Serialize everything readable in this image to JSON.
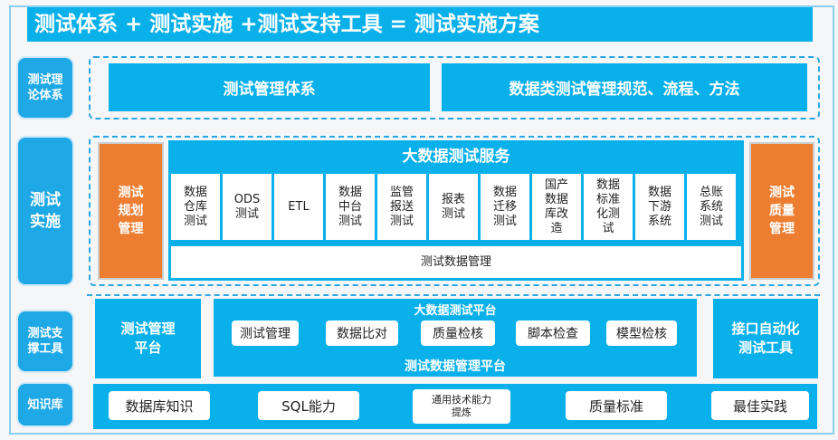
{
  "title": "测试体系 + 测试实施 +测试支持工具 = 测试实施方案",
  "side_labels": [
    "测试理\n论体系",
    "测试\n实施",
    "测试支\n撑工具",
    "知识库"
  ],
  "theory": {
    "items": [
      "测试管理体系",
      "数据类测试管理规范、流程、方法"
    ]
  },
  "implementation": {
    "left": "测试\n规划\n管理",
    "right": "测试\n质量\n管理",
    "service_title": "大数据测试服务",
    "services": [
      "数据\n仓库\n测试",
      "ODS\n测试",
      "ETL",
      "数据\n中台\n测试",
      "监管\n报送\n测试",
      "报表\n测试",
      "数据\n迁移\n测试",
      "国产\n数据\n库改\n造",
      "数据\n标准\n化测\n试",
      "数据\n下游\n系统",
      "总账\n系统\n测试"
    ],
    "data_mgmt": "测试数据管理"
  },
  "tools": {
    "mgmt_platform": "测试管理\n平台",
    "bigdata_platform": "大数据测试平台",
    "platform_items": [
      "测试管理",
      "数据比对",
      "质量检核",
      "脚本检查",
      "模型检核"
    ],
    "data_platform": "测试数据管理平台",
    "api_tool": "接口自动化\n测试工具"
  },
  "knowledge": {
    "items": [
      "数据库知识",
      "SQL能力",
      "通用技术能力\n提炼",
      "质量标准",
      "最佳实践"
    ]
  },
  "colors": {
    "blue": "#0ab0ea",
    "orange": "#ed7d31"
  }
}
